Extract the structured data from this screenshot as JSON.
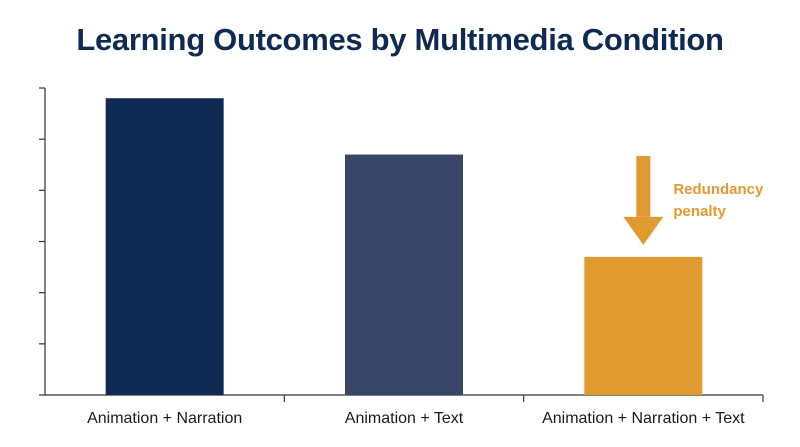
{
  "chart_data": {
    "type": "bar",
    "title": "Learning Outcomes by Multimedia Condition",
    "xlabel": "",
    "ylabel": "",
    "categories": [
      "Animation + Narration",
      "Animation + Text",
      "Animation + Narration + Text"
    ],
    "values": [
      5.8,
      4.7,
      2.7
    ],
    "ylim": [
      0,
      6
    ],
    "grid": false,
    "bar_colors": [
      "#0f2a52",
      "#3a4668",
      "#e09a30"
    ],
    "annotation": {
      "lines": [
        "Redundancy",
        "penalty"
      ],
      "category_index": 2,
      "color": "#e09a30"
    }
  }
}
